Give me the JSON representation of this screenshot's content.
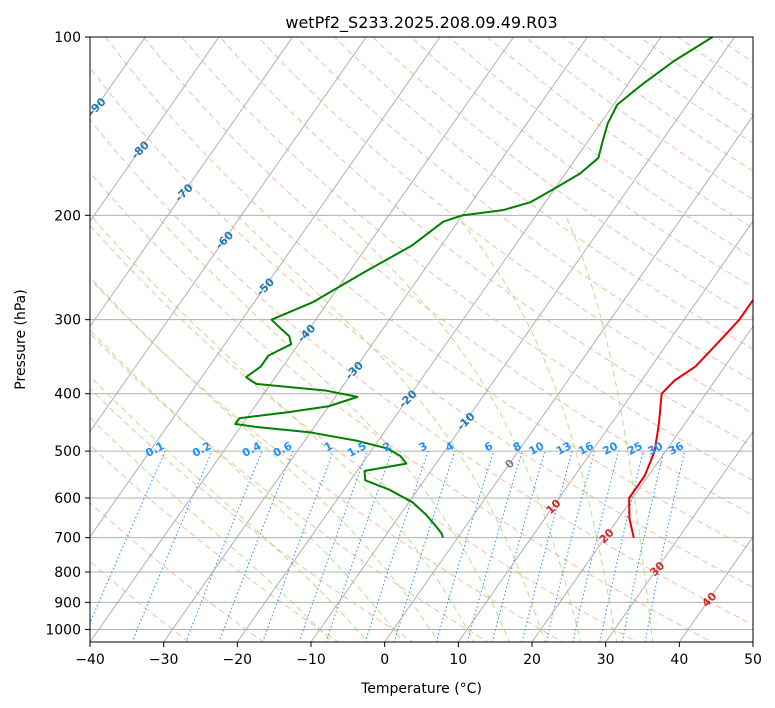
{
  "chart_data": {
    "type": "line",
    "chart_kind": "skew-T log-p diagram",
    "title": "wetPf2_S233.2025.208.09.49.R03",
    "xlabel": "Temperature (°C)",
    "ylabel": "Pressure (hPa)",
    "xlim": [
      -40,
      50
    ],
    "ylim": [
      1050,
      100
    ],
    "y_scale": "log",
    "grid": true,
    "x_ticks": [
      -40,
      -30,
      -20,
      -10,
      0,
      10,
      20,
      30,
      40,
      50
    ],
    "x_tick_labels": [
      "−40",
      "−30",
      "−20",
      "−10",
      "0",
      "10",
      "20",
      "30",
      "40",
      "50"
    ],
    "y_ticks": [
      100,
      200,
      300,
      400,
      500,
      600,
      700,
      800,
      900,
      1000
    ],
    "y_tick_labels": [
      "100",
      "200",
      "300",
      "400",
      "500",
      "600",
      "700",
      "800",
      "900",
      "1000"
    ],
    "colors": {
      "temperature": "#e8000b",
      "dewpoint": "#008000",
      "isotherm": "#a9a9a9",
      "dry_adiabat": "#f4a582",
      "moist_adiabat": "#a6d96a",
      "mixing_ratio": "#1e90ff",
      "label_blue": "#1f77b4",
      "label_red": "#d62728"
    },
    "isotherm_labels": [
      {
        "text": "-100",
        "t": -100,
        "p": 112
      },
      {
        "text": "-90",
        "t": -90,
        "p": 131
      },
      {
        "text": "-80",
        "t": -80,
        "p": 155
      },
      {
        "text": "-70",
        "t": -70,
        "p": 183
      },
      {
        "text": "-60",
        "t": -60,
        "p": 220
      },
      {
        "text": "-50",
        "t": -50,
        "p": 264
      },
      {
        "text": "-40",
        "t": -40,
        "p": 316
      },
      {
        "text": "-30",
        "t": -30,
        "p": 365
      },
      {
        "text": "-20",
        "t": -20,
        "p": 408
      },
      {
        "text": "-10",
        "t": -10,
        "p": 445
      },
      {
        "text": "0",
        "t": 0,
        "p": 525
      },
      {
        "text": "10",
        "t": 10,
        "p": 620
      },
      {
        "text": "20",
        "t": 20,
        "p": 695
      },
      {
        "text": "30",
        "t": 30,
        "p": 790
      },
      {
        "text": "40",
        "t": 40,
        "p": 890
      }
    ],
    "mixing_ratio_labels": [
      "0.1",
      "0.2",
      "0.4",
      "0.6",
      "1",
      "1.5",
      "2",
      "3",
      "4",
      "6",
      "8",
      "10",
      "13",
      "16",
      "20",
      "25",
      "30",
      "36"
    ],
    "mixing_ratio_values": [
      0.1,
      0.2,
      0.4,
      0.6,
      1,
      1.5,
      2,
      3,
      4,
      6,
      8,
      10,
      13,
      16,
      20,
      25,
      30,
      36
    ],
    "mixing_ratio_label_pressure": 500,
    "dry_adiabats_theta_c": [
      -30,
      -20,
      -10,
      0,
      10,
      20,
      30,
      40,
      50,
      60,
      70,
      80,
      90,
      100,
      110,
      120,
      130,
      140,
      150,
      160,
      170,
      180,
      190,
      200,
      210,
      220,
      230,
      240,
      250,
      260,
      270,
      280
    ],
    "moist_adiabats_thetaw_c": [
      -10,
      -5,
      0,
      5,
      10,
      15,
      20,
      25,
      30,
      35
    ],
    "series": [
      {
        "name": "Temperature",
        "pressure": [
          700,
          650,
          600,
          550,
          500,
          450,
          400,
          380,
          360,
          340,
          320,
          300,
          280,
          260,
          240,
          220,
          200,
          190,
          180,
          170,
          160,
          150,
          140,
          130,
          120,
          110,
          100
        ],
        "values": [
          23.9,
          21.5,
          19.5,
          19.5,
          18.5,
          16.5,
          14.0,
          14.5,
          16.0,
          16.5,
          17.0,
          17.5,
          17.5,
          17.5,
          17.5,
          17.8,
          18.5,
          19.0,
          20.0,
          21.0,
          22.0,
          23.0,
          25.0,
          27.5,
          29.5,
          31.5,
          34.0
        ]
      },
      {
        "name": "Dewpoint",
        "pressure": [
          700,
          690,
          670,
          640,
          610,
          580,
          560,
          540,
          525,
          510,
          495,
          480,
          465,
          455,
          450,
          445,
          440,
          430,
          420,
          405,
          395,
          385,
          375,
          360,
          345,
          330,
          320,
          310,
          300,
          280,
          250,
          225,
          205,
          200,
          196,
          190,
          180,
          170,
          160,
          150,
          140,
          130,
          120,
          110,
          100
        ],
        "values": [
          -2,
          -2.5,
          -4,
          -6.5,
          -9.5,
          -14,
          -18,
          -19,
          -14,
          -15.5,
          -18,
          -23,
          -30,
          -38,
          -41,
          -41,
          -41,
          -35,
          -30,
          -27,
          -32,
          -42,
          -44,
          -43,
          -43,
          -41,
          -42,
          -44,
          -46,
          -42,
          -38,
          -34,
          -32,
          -30,
          -25,
          -22,
          -20,
          -18,
          -17,
          -18,
          -19,
          -19.5,
          -18,
          -16,
          -13
        ]
      }
    ]
  }
}
